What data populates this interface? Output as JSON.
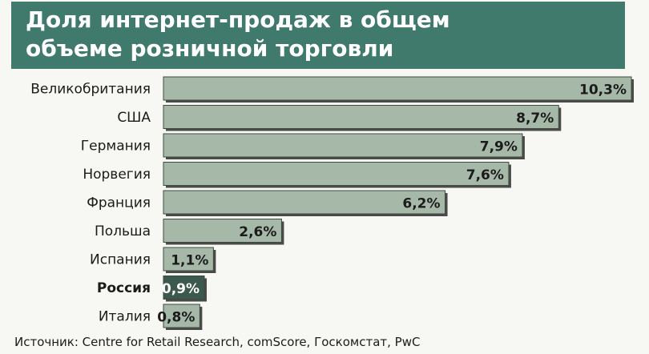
{
  "title": {
    "line1": "Доля интернет-продаж в общем",
    "line2": "объеме розничной торговли"
  },
  "source": "Источник: Centre for Retail Research, comScore, Госкомстат, PwC",
  "colors": {
    "title_band": "#3f7a6c",
    "bar_fill": "#a6b9a9",
    "bar_highlight": "#3b5a4d",
    "bar_shadow": "#4a4a46"
  },
  "chart_data": {
    "type": "bar",
    "orientation": "horizontal",
    "title": "Доля интернет-продаж в общем объеме розничной торговли",
    "categories": [
      "Великобритания",
      "США",
      "Германия",
      "Норвегия",
      "Франция",
      "Польша",
      "Испания",
      "Россия",
      "Италия"
    ],
    "values": [
      10.3,
      8.7,
      7.9,
      7.6,
      6.2,
      2.6,
      1.1,
      0.9,
      0.8
    ],
    "value_labels": [
      "10,3%",
      "8,7%",
      "7,9%",
      "7,6%",
      "6,2%",
      "2,6%",
      "1,1%",
      "0,9%",
      "0,8%"
    ],
    "highlight": "Россия",
    "xlabel": "",
    "ylabel": "",
    "grid": false
  }
}
